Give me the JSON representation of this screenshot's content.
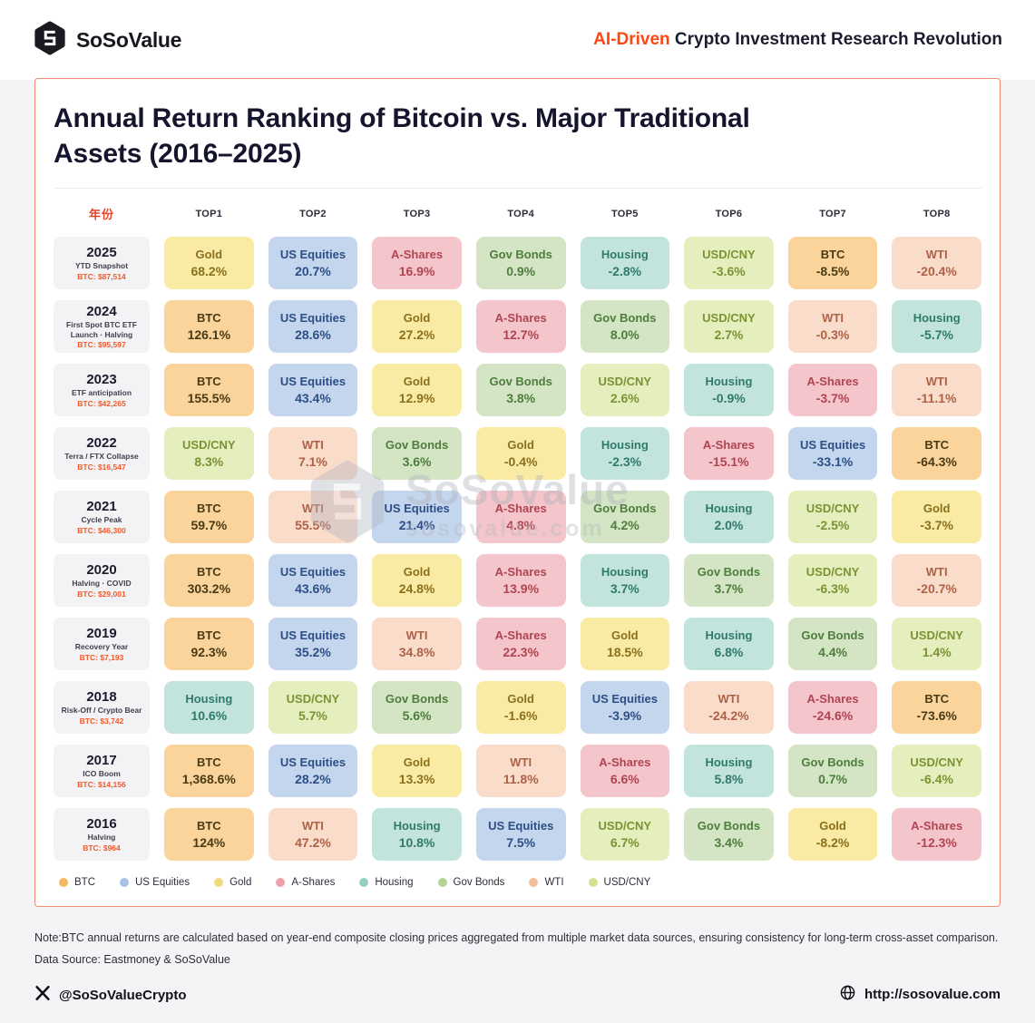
{
  "header": {
    "brand": "SoSoValue",
    "tagline": {
      "highlight": "AI-Driven",
      "rest": " Crypto Investment Research Revolution"
    }
  },
  "poster": {
    "title_line1": "Annual Return Ranking of Bitcoin vs. Major Traditional",
    "title_line2": "Assets (2016–2025)"
  },
  "watermark": {
    "brand": "SoSoValue",
    "domain": "sosovalue.com"
  },
  "notes": {
    "note": "Note:BTC annual returns are calculated based on year-end composite closing prices aggregated from multiple market data sources, ensuring consistency for long-term cross-asset comparison.",
    "source": "Data Source: Eastmoney & SoSoValue"
  },
  "footer": {
    "twitter": "@SoSoValueCrypto",
    "website": "http://sosovalue.com"
  },
  "palette": {
    "BTC": {
      "bg": "#FAD49B",
      "text": "#4A3A14",
      "dot": "#F4B860"
    },
    "US Equities": {
      "bg": "#C4D6EE",
      "text": "#2D4E85",
      "dot": "#A8C2E6"
    },
    "Gold": {
      "bg": "#FAEBA4",
      "text": "#8A701C",
      "dot": "#F1DA7E"
    },
    "A-Shares": {
      "bg": "#F4C5CA",
      "text": "#B04552",
      "dot": "#EBA2AB"
    },
    "Housing": {
      "bg": "#C3E4DD",
      "text": "#2F7A6B",
      "dot": "#97D0C2"
    },
    "Gov Bonds": {
      "bg": "#D3E5C5",
      "text": "#4E7D3C",
      "dot": "#B3D495"
    },
    "WTI": {
      "bg": "#FADCCB",
      "text": "#AD6247",
      "dot": "#F3BD9C"
    },
    "USD/CNY": {
      "bg": "#E5EEBD",
      "text": "#7E9133",
      "dot": "#D6E08E"
    }
  },
  "chart_data": {
    "type": "table",
    "title": "Annual Return Ranking of Bitcoin vs. Major Traditional Assets (2016–2025)",
    "columns": [
      "年份",
      "TOP1",
      "TOP2",
      "TOP3",
      "TOP4",
      "TOP5",
      "TOP6",
      "TOP7",
      "TOP8"
    ],
    "legend": [
      "BTC",
      "US Equities",
      "Gold",
      "A-Shares",
      "Housing",
      "Gov Bonds",
      "WTI",
      "USD/CNY"
    ],
    "rows": [
      {
        "year": "2025",
        "subtitle": "YTD Snapshot",
        "btc_price": "BTC: $87,514",
        "ranking": [
          {
            "asset": "Gold",
            "value": "68.2%",
            "return_pct": 68.2
          },
          {
            "asset": "US Equities",
            "value": "20.7%",
            "return_pct": 20.7
          },
          {
            "asset": "A-Shares",
            "value": "16.9%",
            "return_pct": 16.9
          },
          {
            "asset": "Gov Bonds",
            "value": "0.9%",
            "return_pct": 0.9
          },
          {
            "asset": "Housing",
            "value": "-2.8%",
            "return_pct": -2.8
          },
          {
            "asset": "USD/CNY",
            "value": "-3.6%",
            "return_pct": -3.6
          },
          {
            "asset": "BTC",
            "value": "-8.5%",
            "return_pct": -8.5
          },
          {
            "asset": "WTI",
            "value": "-20.4%",
            "return_pct": -20.4
          }
        ]
      },
      {
        "year": "2024",
        "subtitle": "First Spot BTC ETF Launch · Halving",
        "btc_price": "BTC: $95,597",
        "ranking": [
          {
            "asset": "BTC",
            "value": "126.1%",
            "return_pct": 126.1
          },
          {
            "asset": "US Equities",
            "value": "28.6%",
            "return_pct": 28.6
          },
          {
            "asset": "Gold",
            "value": "27.2%",
            "return_pct": 27.2
          },
          {
            "asset": "A-Shares",
            "value": "12.7%",
            "return_pct": 12.7
          },
          {
            "asset": "Gov Bonds",
            "value": "8.0%",
            "return_pct": 8.0
          },
          {
            "asset": "USD/CNY",
            "value": "2.7%",
            "return_pct": 2.7
          },
          {
            "asset": "WTI",
            "value": "-0.3%",
            "return_pct": -0.3
          },
          {
            "asset": "Housing",
            "value": "-5.7%",
            "return_pct": -5.7
          }
        ]
      },
      {
        "year": "2023",
        "subtitle": "ETF anticipation",
        "btc_price": "BTC: $42,265",
        "ranking": [
          {
            "asset": "BTC",
            "value": "155.5%",
            "return_pct": 155.5
          },
          {
            "asset": "US Equities",
            "value": "43.4%",
            "return_pct": 43.4
          },
          {
            "asset": "Gold",
            "value": "12.9%",
            "return_pct": 12.9
          },
          {
            "asset": "Gov Bonds",
            "value": "3.8%",
            "return_pct": 3.8
          },
          {
            "asset": "USD/CNY",
            "value": "2.6%",
            "return_pct": 2.6
          },
          {
            "asset": "Housing",
            "value": "-0.9%",
            "return_pct": -0.9
          },
          {
            "asset": "A-Shares",
            "value": "-3.7%",
            "return_pct": -3.7
          },
          {
            "asset": "WTI",
            "value": "-11.1%",
            "return_pct": -11.1
          }
        ]
      },
      {
        "year": "2022",
        "subtitle": "Terra / FTX Collapse",
        "btc_price": "BTC: $16,547",
        "ranking": [
          {
            "asset": "USD/CNY",
            "value": "8.3%",
            "return_pct": 8.3
          },
          {
            "asset": "WTI",
            "value": "7.1%",
            "return_pct": 7.1
          },
          {
            "asset": "Gov Bonds",
            "value": "3.6%",
            "return_pct": 3.6
          },
          {
            "asset": "Gold",
            "value": "-0.4%",
            "return_pct": -0.4
          },
          {
            "asset": "Housing",
            "value": "-2.3%",
            "return_pct": -2.3
          },
          {
            "asset": "A-Shares",
            "value": "-15.1%",
            "return_pct": -15.1
          },
          {
            "asset": "US Equities",
            "value": "-33.1%",
            "return_pct": -33.1
          },
          {
            "asset": "BTC",
            "value": "-64.3%",
            "return_pct": -64.3
          }
        ]
      },
      {
        "year": "2021",
        "subtitle": "Cycle Peak",
        "btc_price": "BTC: $46,300",
        "ranking": [
          {
            "asset": "BTC",
            "value": "59.7%",
            "return_pct": 59.7
          },
          {
            "asset": "WTI",
            "value": "55.5%",
            "return_pct": 55.5
          },
          {
            "asset": "US Equities",
            "value": "21.4%",
            "return_pct": 21.4
          },
          {
            "asset": "A-Shares",
            "value": "4.8%",
            "return_pct": 4.8
          },
          {
            "asset": "Gov Bonds",
            "value": "4.2%",
            "return_pct": 4.2
          },
          {
            "asset": "Housing",
            "value": "2.0%",
            "return_pct": 2.0
          },
          {
            "asset": "USD/CNY",
            "value": "-2.5%",
            "return_pct": -2.5
          },
          {
            "asset": "Gold",
            "value": "-3.7%",
            "return_pct": -3.7
          }
        ]
      },
      {
        "year": "2020",
        "subtitle": "Halving · COVID",
        "btc_price": "BTC: $29,001",
        "ranking": [
          {
            "asset": "BTC",
            "value": "303.2%",
            "return_pct": 303.2
          },
          {
            "asset": "US Equities",
            "value": "43.6%",
            "return_pct": 43.6
          },
          {
            "asset": "Gold",
            "value": "24.8%",
            "return_pct": 24.8
          },
          {
            "asset": "A-Shares",
            "value": "13.9%",
            "return_pct": 13.9
          },
          {
            "asset": "Housing",
            "value": "3.7%",
            "return_pct": 3.7
          },
          {
            "asset": "Gov Bonds",
            "value": "3.7%",
            "return_pct": 3.7
          },
          {
            "asset": "USD/CNY",
            "value": "-6.3%",
            "return_pct": -6.3
          },
          {
            "asset": "WTI",
            "value": "-20.7%",
            "return_pct": -20.7
          }
        ]
      },
      {
        "year": "2019",
        "subtitle": "Recovery Year",
        "btc_price": "BTC: $7,193",
        "ranking": [
          {
            "asset": "BTC",
            "value": "92.3%",
            "return_pct": 92.3
          },
          {
            "asset": "US Equities",
            "value": "35.2%",
            "return_pct": 35.2
          },
          {
            "asset": "WTI",
            "value": "34.8%",
            "return_pct": 34.8
          },
          {
            "asset": "A-Shares",
            "value": "22.3%",
            "return_pct": 22.3
          },
          {
            "asset": "Gold",
            "value": "18.5%",
            "return_pct": 18.5
          },
          {
            "asset": "Housing",
            "value": "6.8%",
            "return_pct": 6.8
          },
          {
            "asset": "Gov Bonds",
            "value": "4.4%",
            "return_pct": 4.4
          },
          {
            "asset": "USD/CNY",
            "value": "1.4%",
            "return_pct": 1.4
          }
        ]
      },
      {
        "year": "2018",
        "subtitle": "Risk-Off / Crypto Bear",
        "btc_price": "BTC: $3,742",
        "ranking": [
          {
            "asset": "Housing",
            "value": "10.6%",
            "return_pct": 10.6
          },
          {
            "asset": "USD/CNY",
            "value": "5.7%",
            "return_pct": 5.7
          },
          {
            "asset": "Gov Bonds",
            "value": "5.6%",
            "return_pct": 5.6
          },
          {
            "asset": "Gold",
            "value": "-1.6%",
            "return_pct": -1.6
          },
          {
            "asset": "US Equities",
            "value": "-3.9%",
            "return_pct": -3.9
          },
          {
            "asset": "WTI",
            "value": "-24.2%",
            "return_pct": -24.2
          },
          {
            "asset": "A-Shares",
            "value": "-24.6%",
            "return_pct": -24.6
          },
          {
            "asset": "BTC",
            "value": "-73.6%",
            "return_pct": -73.6
          }
        ]
      },
      {
        "year": "2017",
        "subtitle": "ICO Boom",
        "btc_price": "BTC: $14,156",
        "ranking": [
          {
            "asset": "BTC",
            "value": "1,368.6%",
            "return_pct": 1368.6
          },
          {
            "asset": "US Equities",
            "value": "28.2%",
            "return_pct": 28.2
          },
          {
            "asset": "Gold",
            "value": "13.3%",
            "return_pct": 13.3
          },
          {
            "asset": "WTI",
            "value": "11.8%",
            "return_pct": 11.8
          },
          {
            "asset": "A-Shares",
            "value": "6.6%",
            "return_pct": 6.6
          },
          {
            "asset": "Housing",
            "value": "5.8%",
            "return_pct": 5.8
          },
          {
            "asset": "Gov Bonds",
            "value": "0.7%",
            "return_pct": 0.7
          },
          {
            "asset": "USD/CNY",
            "value": "-6.4%",
            "return_pct": -6.4
          }
        ]
      },
      {
        "year": "2016",
        "subtitle": "Halving",
        "btc_price": "BTC: $964",
        "ranking": [
          {
            "asset": "BTC",
            "value": "124%",
            "return_pct": 124
          },
          {
            "asset": "WTI",
            "value": "47.2%",
            "return_pct": 47.2
          },
          {
            "asset": "Housing",
            "value": "10.8%",
            "return_pct": 10.8
          },
          {
            "asset": "US Equities",
            "value": "7.5%",
            "return_pct": 7.5
          },
          {
            "asset": "USD/CNY",
            "value": "6.7%",
            "return_pct": 6.7
          },
          {
            "asset": "Gov Bonds",
            "value": "3.4%",
            "return_pct": 3.4
          },
          {
            "asset": "Gold",
            "value": "-8.2%",
            "return_pct": -8.2
          },
          {
            "asset": "A-Shares",
            "value": "-12.3%",
            "return_pct": -12.3
          }
        ]
      }
    ]
  }
}
